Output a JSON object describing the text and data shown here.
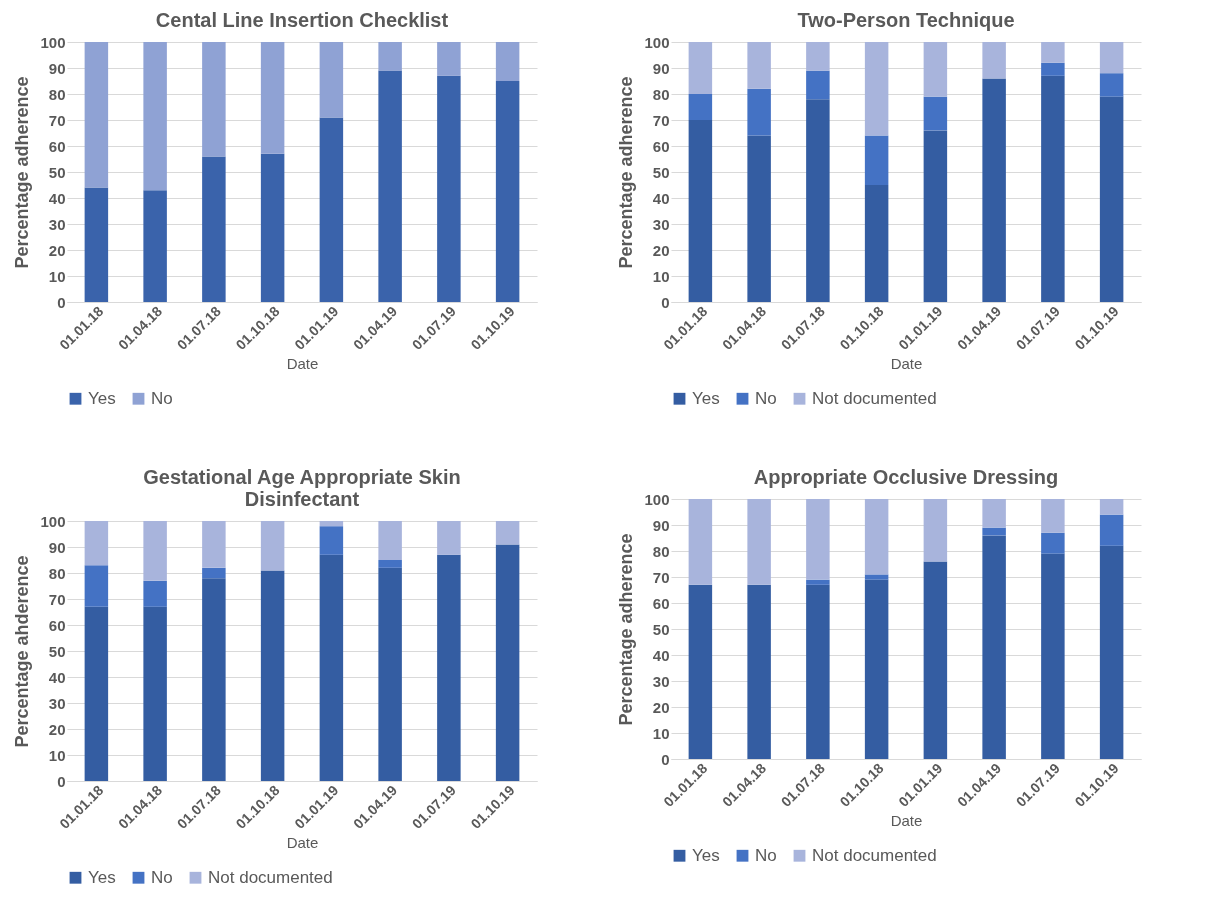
{
  "chart_data": [
    {
      "type": "bar",
      "title": "Cental Line Insertion Checklist",
      "xlabel": "Date",
      "ylabel": "Percentage adherence",
      "categories": [
        "01.01.18",
        "01.04.18",
        "01.07.18",
        "01.10.18",
        "01.01.19",
        "01.04.19",
        "01.07.19",
        "01.10.19"
      ],
      "stacked": true,
      "ylim": [
        0,
        100
      ],
      "yticks": [
        0,
        10,
        20,
        30,
        40,
        50,
        60,
        70,
        80,
        90,
        100
      ],
      "grid": "y",
      "legend": "bottom",
      "series": [
        {
          "name": "Yes",
          "color": "#3a63ab",
          "values": [
            44,
            43,
            56,
            57,
            71,
            89,
            87,
            85
          ]
        },
        {
          "name": "No",
          "color": "#8fa2d4",
          "values": [
            56,
            57,
            44,
            43,
            29,
            11,
            13,
            15
          ]
        }
      ]
    },
    {
      "type": "bar",
      "title": "Two-Person Technique",
      "xlabel": "Date",
      "ylabel": "Percentage adherence",
      "categories": [
        "01.01.18",
        "01.04.18",
        "01.07.18",
        "01.10.18",
        "01.01.19",
        "01.04.19",
        "01.07.19",
        "01.10.19"
      ],
      "stacked": true,
      "ylim": [
        0,
        100
      ],
      "yticks": [
        0,
        10,
        20,
        30,
        40,
        50,
        60,
        70,
        80,
        90,
        100
      ],
      "grid": "y",
      "legend": "bottom",
      "series": [
        {
          "name": "Yes",
          "color": "#345da2",
          "values": [
            70,
            64,
            78,
            45,
            66,
            86,
            87,
            79
          ]
        },
        {
          "name": "No",
          "color": "#4472c4",
          "values": [
            10,
            18,
            11,
            19,
            13,
            0,
            5,
            9
          ]
        },
        {
          "name": "Not documented",
          "color": "#a8b4dc",
          "values": [
            20,
            18,
            11,
            36,
            21,
            14,
            8,
            12
          ]
        }
      ]
    },
    {
      "type": "bar",
      "title": "Gestational Age Appropriate Skin Disinfectant",
      "xlabel": "Date",
      "ylabel": "Percentage ahderence",
      "categories": [
        "01.01.18",
        "01.04.18",
        "01.07.18",
        "01.10.18",
        "01.01.19",
        "01.04.19",
        "01.07.19",
        "01.10.19"
      ],
      "stacked": true,
      "ylim": [
        0,
        100
      ],
      "yticks": [
        0,
        10,
        20,
        30,
        40,
        50,
        60,
        70,
        80,
        90,
        100
      ],
      "grid": "y",
      "legend": "bottom",
      "series": [
        {
          "name": "Yes",
          "color": "#345da2",
          "values": [
            67,
            67,
            78,
            81,
            87,
            82,
            87,
            91
          ]
        },
        {
          "name": "No",
          "color": "#4472c4",
          "values": [
            16,
            10,
            4,
            0,
            11,
            3,
            0,
            0
          ]
        },
        {
          "name": "Not documented",
          "color": "#a8b4dc",
          "values": [
            17,
            23,
            18,
            19,
            2,
            15,
            13,
            9
          ]
        }
      ]
    },
    {
      "type": "bar",
      "title": "Appropriate Occlusive Dressing",
      "xlabel": "Date",
      "ylabel": "Percentage adherence",
      "categories": [
        "01.01.18",
        "01.04.18",
        "01.07.18",
        "01.10.18",
        "01.01.19",
        "01.04.19",
        "01.07.19",
        "01.10.19"
      ],
      "stacked": true,
      "ylim": [
        0,
        100
      ],
      "yticks": [
        0,
        10,
        20,
        30,
        40,
        50,
        60,
        70,
        80,
        90,
        100
      ],
      "grid": "y",
      "legend": "bottom",
      "series": [
        {
          "name": "Yes",
          "color": "#345da2",
          "values": [
            67,
            67,
            67,
            69,
            76,
            86,
            79,
            82
          ]
        },
        {
          "name": "No",
          "color": "#4472c4",
          "values": [
            0,
            0,
            2,
            2,
            0,
            3,
            8,
            12
          ]
        },
        {
          "name": "Not documented",
          "color": "#a8b4dc",
          "values": [
            33,
            33,
            31,
            29,
            24,
            11,
            13,
            6
          ]
        }
      ]
    }
  ]
}
